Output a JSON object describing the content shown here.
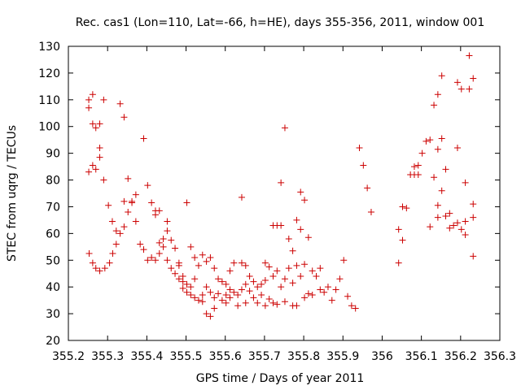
{
  "chart_data": {
    "type": "scatter",
    "title": "Rec. cas1 (Lon=110, Lat=-66, h=HE), days 355-356, 2011, window 001",
    "xlabel": "GPS time / Days of year 2011",
    "ylabel": "STEC from uqrg / TECUs",
    "xlim": [
      355.2,
      356.3
    ],
    "ylim": [
      20,
      130
    ],
    "x_ticks": [
      355.2,
      355.3,
      355.4,
      355.5,
      355.6,
      355.7,
      355.8,
      355.9,
      356,
      356.1,
      356.2,
      356.3
    ],
    "x_tick_labels": [
      "355.2",
      "355.3",
      "355.4",
      "355.5",
      "355.6",
      "355.7",
      "355.8",
      "355.9",
      "356",
      "356.1",
      "356.2",
      "356.3"
    ],
    "y_ticks": [
      20,
      30,
      40,
      50,
      60,
      70,
      80,
      90,
      100,
      110,
      120,
      130
    ],
    "y_tick_labels": [
      "20",
      "30",
      "40",
      "50",
      "60",
      "70",
      "80",
      "90",
      "100",
      "110",
      "120",
      "130"
    ],
    "grid": false,
    "marker": "plus",
    "marker_color": "#cc0000",
    "points": [
      [
        355.252,
        110
      ],
      [
        355.252,
        107
      ],
      [
        355.252,
        83
      ],
      [
        355.253,
        52.5
      ],
      [
        355.262,
        112
      ],
      [
        355.262,
        101
      ],
      [
        355.262,
        85.5
      ],
      [
        355.262,
        49
      ],
      [
        355.27,
        99.5
      ],
      [
        355.27,
        84
      ],
      [
        355.27,
        47
      ],
      [
        355.28,
        101
      ],
      [
        355.28,
        92
      ],
      [
        355.28,
        88.5
      ],
      [
        355.28,
        46
      ],
      [
        355.29,
        110
      ],
      [
        355.29,
        80
      ],
      [
        355.293,
        47
      ],
      [
        355.302,
        70.5
      ],
      [
        355.305,
        49
      ],
      [
        355.312,
        64.5
      ],
      [
        355.313,
        52.5
      ],
      [
        355.322,
        56
      ],
      [
        355.322,
        61
      ],
      [
        355.332,
        108.5
      ],
      [
        355.332,
        60
      ],
      [
        355.342,
        103.5
      ],
      [
        355.342,
        72
      ],
      [
        355.342,
        62.5
      ],
      [
        355.352,
        80.5
      ],
      [
        355.352,
        68
      ],
      [
        355.362,
        72
      ],
      [
        355.362,
        71.5
      ],
      [
        355.372,
        74.5
      ],
      [
        355.372,
        64.5
      ],
      [
        355.383,
        56
      ],
      [
        355.392,
        95.5
      ],
      [
        355.392,
        54
      ],
      [
        355.402,
        78
      ],
      [
        355.402,
        50
      ],
      [
        355.412,
        71.5
      ],
      [
        355.412,
        51
      ],
      [
        355.422,
        68.5
      ],
      [
        355.422,
        67
      ],
      [
        355.422,
        50
      ],
      [
        355.432,
        68.5
      ],
      [
        355.432,
        56.5
      ],
      [
        355.432,
        52.5
      ],
      [
        355.442,
        58
      ],
      [
        355.442,
        55
      ],
      [
        355.452,
        64.5
      ],
      [
        355.452,
        61
      ],
      [
        355.452,
        50
      ],
      [
        355.462,
        57.5
      ],
      [
        355.462,
        47
      ],
      [
        355.472,
        54.5
      ],
      [
        355.472,
        45
      ],
      [
        355.482,
        49
      ],
      [
        355.482,
        48
      ],
      [
        355.482,
        43
      ],
      [
        355.492,
        44
      ],
      [
        355.492,
        42
      ],
      [
        355.492,
        39.5
      ],
      [
        355.502,
        71.5
      ],
      [
        355.502,
        41
      ],
      [
        355.502,
        38
      ],
      [
        355.512,
        55
      ],
      [
        355.512,
        40
      ],
      [
        355.512,
        37
      ],
      [
        355.522,
        51
      ],
      [
        355.522,
        43
      ],
      [
        355.522,
        36
      ],
      [
        355.532,
        48
      ],
      [
        355.532,
        35
      ],
      [
        355.542,
        52
      ],
      [
        355.542,
        37
      ],
      [
        355.542,
        34.5
      ],
      [
        355.552,
        49.5
      ],
      [
        355.552,
        40
      ],
      [
        355.552,
        30
      ],
      [
        355.562,
        51
      ],
      [
        355.562,
        38
      ],
      [
        355.562,
        29
      ],
      [
        355.572,
        47
      ],
      [
        355.572,
        36
      ],
      [
        355.572,
        32
      ],
      [
        355.582,
        43
      ],
      [
        355.582,
        37.5
      ],
      [
        355.592,
        42
      ],
      [
        355.592,
        35
      ],
      [
        355.602,
        41
      ],
      [
        355.602,
        37
      ],
      [
        355.602,
        34
      ],
      [
        355.612,
        46
      ],
      [
        355.612,
        39
      ],
      [
        355.612,
        36
      ],
      [
        355.622,
        49
      ],
      [
        355.622,
        38
      ],
      [
        355.632,
        37
      ],
      [
        355.632,
        33
      ],
      [
        355.642,
        73.5
      ],
      [
        355.642,
        49
      ],
      [
        355.642,
        39
      ],
      [
        355.652,
        48
      ],
      [
        355.652,
        41
      ],
      [
        355.652,
        34
      ],
      [
        355.662,
        44
      ],
      [
        355.662,
        38.5
      ],
      [
        355.672,
        42
      ],
      [
        355.672,
        36
      ],
      [
        355.682,
        40
      ],
      [
        355.682,
        34
      ],
      [
        355.692,
        41
      ],
      [
        355.692,
        37
      ],
      [
        355.702,
        49
      ],
      [
        355.702,
        42.5
      ],
      [
        355.702,
        33
      ],
      [
        355.712,
        47.5
      ],
      [
        355.712,
        35.5
      ],
      [
        355.722,
        63
      ],
      [
        355.722,
        44
      ],
      [
        355.722,
        34
      ],
      [
        355.732,
        63
      ],
      [
        355.732,
        46
      ],
      [
        355.732,
        33.5
      ],
      [
        355.742,
        79
      ],
      [
        355.742,
        63
      ],
      [
        355.742,
        40
      ],
      [
        355.752,
        99.5
      ],
      [
        355.752,
        43
      ],
      [
        355.752,
        34.5
      ],
      [
        355.762,
        58
      ],
      [
        355.762,
        47
      ],
      [
        355.772,
        53.5
      ],
      [
        355.772,
        41.5
      ],
      [
        355.772,
        33
      ],
      [
        355.782,
        65
      ],
      [
        355.782,
        48
      ],
      [
        355.782,
        33
      ],
      [
        355.792,
        75.5
      ],
      [
        355.792,
        61.5
      ],
      [
        355.792,
        44
      ],
      [
        355.802,
        72.5
      ],
      [
        355.802,
        48.5
      ],
      [
        355.802,
        36
      ],
      [
        355.812,
        58.5
      ],
      [
        355.812,
        37.5
      ],
      [
        355.822,
        46
      ],
      [
        355.822,
        37
      ],
      [
        355.832,
        44
      ],
      [
        355.842,
        47
      ],
      [
        355.842,
        39
      ],
      [
        355.852,
        38
      ],
      [
        355.862,
        40
      ],
      [
        355.872,
        35
      ],
      [
        355.882,
        39
      ],
      [
        355.892,
        43
      ],
      [
        355.902,
        50
      ],
      [
        355.912,
        36.5
      ],
      [
        355.922,
        33
      ],
      [
        355.932,
        32
      ],
      [
        355.942,
        92
      ],
      [
        355.952,
        85.5
      ],
      [
        355.962,
        77
      ],
      [
        355.972,
        68
      ],
      [
        356.042,
        61.5
      ],
      [
        356.042,
        49
      ],
      [
        356.052,
        57.5
      ],
      [
        356.052,
        70
      ],
      [
        356.062,
        69.5
      ],
      [
        356.072,
        82
      ],
      [
        356.082,
        85
      ],
      [
        356.082,
        82
      ],
      [
        356.092,
        85.5
      ],
      [
        356.092,
        82
      ],
      [
        356.102,
        90
      ],
      [
        356.112,
        94.5
      ],
      [
        356.122,
        95
      ],
      [
        356.122,
        62.5
      ],
      [
        356.132,
        108
      ],
      [
        356.132,
        81
      ],
      [
        356.142,
        112
      ],
      [
        356.142,
        91.5
      ],
      [
        356.142,
        70.5
      ],
      [
        356.142,
        66
      ],
      [
        356.152,
        119
      ],
      [
        356.152,
        95.5
      ],
      [
        356.152,
        76
      ],
      [
        356.162,
        84
      ],
      [
        356.162,
        66.5
      ],
      [
        356.172,
        67.5
      ],
      [
        356.172,
        62
      ],
      [
        356.182,
        63
      ],
      [
        356.192,
        116.5
      ],
      [
        356.192,
        92
      ],
      [
        356.192,
        64
      ],
      [
        356.202,
        114
      ],
      [
        356.202,
        61.5
      ],
      [
        356.212,
        79
      ],
      [
        356.212,
        64.5
      ],
      [
        356.212,
        59.5
      ],
      [
        356.222,
        126.5
      ],
      [
        356.222,
        114
      ],
      [
        356.232,
        118
      ],
      [
        356.232,
        71
      ],
      [
        356.232,
        66
      ],
      [
        356.232,
        51.5
      ]
    ]
  }
}
